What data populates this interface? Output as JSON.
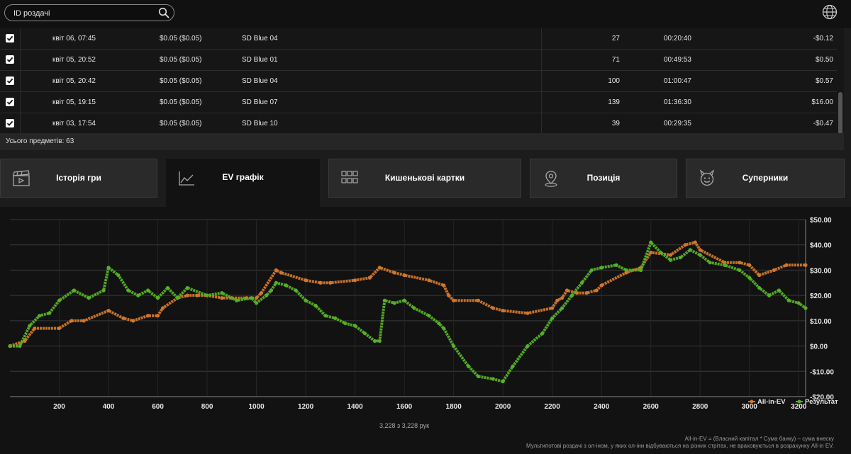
{
  "search": {
    "placeholder": "ID роздачі"
  },
  "table": {
    "rows": [
      {
        "date": "квіт 06, 07:45",
        "stakes": "$0.05 ($0.05)",
        "table": "SD Blue 04",
        "hands": "27",
        "duration": "00:20:40",
        "result": "-$0.12",
        "checked": true
      },
      {
        "date": "квіт 05, 20:52",
        "stakes": "$0.05 ($0.05)",
        "table": "SD Blue 01",
        "hands": "71",
        "duration": "00:49:53",
        "result": "$0.50",
        "checked": true
      },
      {
        "date": "квіт 05, 20:42",
        "stakes": "$0.05 ($0.05)",
        "table": "SD Blue 04",
        "hands": "100",
        "duration": "01:00:47",
        "result": "$0.57",
        "checked": true
      },
      {
        "date": "квіт 05, 19:15",
        "stakes": "$0.05 ($0.05)",
        "table": "SD Blue 07",
        "hands": "139",
        "duration": "01:36:30",
        "result": "$16.00",
        "checked": true
      },
      {
        "date": "квіт 03, 17:54",
        "stakes": "$0.05 ($0.05)",
        "table": "SD Blue 10",
        "hands": "39",
        "duration": "00:29:35",
        "result": "-$0.47",
        "checked": true
      }
    ],
    "total_label": "Усього предметів: 63"
  },
  "tabs": [
    {
      "label": "Історія гри",
      "icon": "clapperboard-icon",
      "active": false
    },
    {
      "label": "EV графік",
      "icon": "line-chart-icon",
      "active": true
    },
    {
      "label": "Кишенькові картки",
      "icon": "grid-icon",
      "active": false
    },
    {
      "label": "Позиція",
      "icon": "location-pin-icon",
      "active": false
    },
    {
      "label": "Суперники",
      "icon": "devil-face-icon",
      "active": false
    }
  ],
  "chart_data": {
    "type": "line",
    "x_range": [
      0,
      3228
    ],
    "y_range": [
      -20,
      50
    ],
    "x_ticks": [
      200,
      400,
      600,
      800,
      1000,
      1200,
      1400,
      1600,
      1800,
      2000,
      2200,
      2400,
      2600,
      2800,
      3000,
      3200
    ],
    "x_tick_labels": [
      "200",
      "400",
      "600",
      "800",
      "1000",
      "1200",
      "1400",
      "1600",
      "1800",
      "2000",
      "2200",
      "2400",
      "2600",
      "2800",
      "3000",
      "3200"
    ],
    "y_ticks": [
      -20,
      -10,
      0,
      10,
      20,
      30,
      40,
      50
    ],
    "y_tick_labels": [
      "-$20.00",
      "-$10.00",
      "$0.00",
      "$10.00",
      "$20.00",
      "$30.00",
      "$40.00",
      "$50.00"
    ],
    "grid": true,
    "legend_position": "bottom-right",
    "series": [
      {
        "name": "All-in-EV",
        "color": "#d2772a",
        "points": [
          [
            0,
            0
          ],
          [
            60,
            2
          ],
          [
            100,
            7
          ],
          [
            200,
            7
          ],
          [
            250,
            10
          ],
          [
            300,
            10
          ],
          [
            400,
            14
          ],
          [
            460,
            11
          ],
          [
            500,
            10
          ],
          [
            560,
            12
          ],
          [
            600,
            12
          ],
          [
            620,
            15
          ],
          [
            680,
            19
          ],
          [
            720,
            20
          ],
          [
            760,
            20
          ],
          [
            800,
            20
          ],
          [
            860,
            19
          ],
          [
            900,
            19
          ],
          [
            960,
            19
          ],
          [
            1000,
            19
          ],
          [
            1020,
            21
          ],
          [
            1080,
            30
          ],
          [
            1100,
            29
          ],
          [
            1200,
            26
          ],
          [
            1260,
            25
          ],
          [
            1300,
            25
          ],
          [
            1400,
            26
          ],
          [
            1460,
            27
          ],
          [
            1500,
            31
          ],
          [
            1560,
            29
          ],
          [
            1600,
            28
          ],
          [
            1700,
            26
          ],
          [
            1760,
            24
          ],
          [
            1780,
            20
          ],
          [
            1800,
            18
          ],
          [
            1900,
            18
          ],
          [
            1960,
            15
          ],
          [
            2000,
            14
          ],
          [
            2100,
            13
          ],
          [
            2200,
            15
          ],
          [
            2220,
            18
          ],
          [
            2240,
            19
          ],
          [
            2260,
            22
          ],
          [
            2300,
            21
          ],
          [
            2340,
            21
          ],
          [
            2380,
            22
          ],
          [
            2400,
            24
          ],
          [
            2500,
            29
          ],
          [
            2560,
            31
          ],
          [
            2600,
            37
          ],
          [
            2680,
            36
          ],
          [
            2740,
            40
          ],
          [
            2780,
            41
          ],
          [
            2800,
            38
          ],
          [
            2900,
            33
          ],
          [
            2960,
            33
          ],
          [
            3000,
            32
          ],
          [
            3040,
            28
          ],
          [
            3100,
            30
          ],
          [
            3150,
            32
          ],
          [
            3228,
            32
          ]
        ]
      },
      {
        "name": "Результат",
        "color": "#55b026",
        "points": [
          [
            0,
            0
          ],
          [
            40,
            0
          ],
          [
            80,
            8
          ],
          [
            120,
            12
          ],
          [
            160,
            13
          ],
          [
            200,
            18
          ],
          [
            260,
            22
          ],
          [
            320,
            19
          ],
          [
            380,
            22
          ],
          [
            400,
            31
          ],
          [
            440,
            28
          ],
          [
            480,
            22
          ],
          [
            520,
            20
          ],
          [
            560,
            22
          ],
          [
            600,
            19
          ],
          [
            640,
            23
          ],
          [
            680,
            19
          ],
          [
            720,
            23
          ],
          [
            800,
            20
          ],
          [
            860,
            21
          ],
          [
            920,
            18
          ],
          [
            980,
            19
          ],
          [
            1000,
            17
          ],
          [
            1040,
            20
          ],
          [
            1060,
            22
          ],
          [
            1080,
            25
          ],
          [
            1120,
            24
          ],
          [
            1160,
            22
          ],
          [
            1200,
            18
          ],
          [
            1240,
            16
          ],
          [
            1280,
            12
          ],
          [
            1320,
            11
          ],
          [
            1360,
            9
          ],
          [
            1400,
            8
          ],
          [
            1440,
            5
          ],
          [
            1480,
            2
          ],
          [
            1500,
            2
          ],
          [
            1520,
            18
          ],
          [
            1560,
            17
          ],
          [
            1600,
            18
          ],
          [
            1640,
            15
          ],
          [
            1700,
            12
          ],
          [
            1740,
            9
          ],
          [
            1760,
            7
          ],
          [
            1800,
            0
          ],
          [
            1860,
            -8
          ],
          [
            1900,
            -12
          ],
          [
            1960,
            -13
          ],
          [
            2000,
            -14
          ],
          [
            2040,
            -8
          ],
          [
            2100,
            0
          ],
          [
            2160,
            5
          ],
          [
            2200,
            11
          ],
          [
            2240,
            15
          ],
          [
            2280,
            20
          ],
          [
            2320,
            25
          ],
          [
            2360,
            30
          ],
          [
            2400,
            31
          ],
          [
            2460,
            32
          ],
          [
            2500,
            30
          ],
          [
            2560,
            30
          ],
          [
            2600,
            41
          ],
          [
            2640,
            37
          ],
          [
            2680,
            34
          ],
          [
            2720,
            35
          ],
          [
            2760,
            38
          ],
          [
            2800,
            36
          ],
          [
            2840,
            33
          ],
          [
            2900,
            32
          ],
          [
            2960,
            30
          ],
          [
            3000,
            27
          ],
          [
            3040,
            23
          ],
          [
            3080,
            20
          ],
          [
            3120,
            22
          ],
          [
            3160,
            18
          ],
          [
            3200,
            17
          ],
          [
            3228,
            15
          ]
        ]
      }
    ]
  },
  "chart_footer": {
    "hands_count": "3,228 з 3,228 рук",
    "note_1": "All-in-EV = (Власний капітал * Сума банку) – сума внеску",
    "note_2": "Мультипотові роздачі з ол-іном, у яких ол-іни відбуваються на різних стрітах, не враховуються в розрахунку All-in EV."
  },
  "colors": {
    "ev": "#d2772a",
    "result": "#55b026",
    "background": "#121212"
  }
}
